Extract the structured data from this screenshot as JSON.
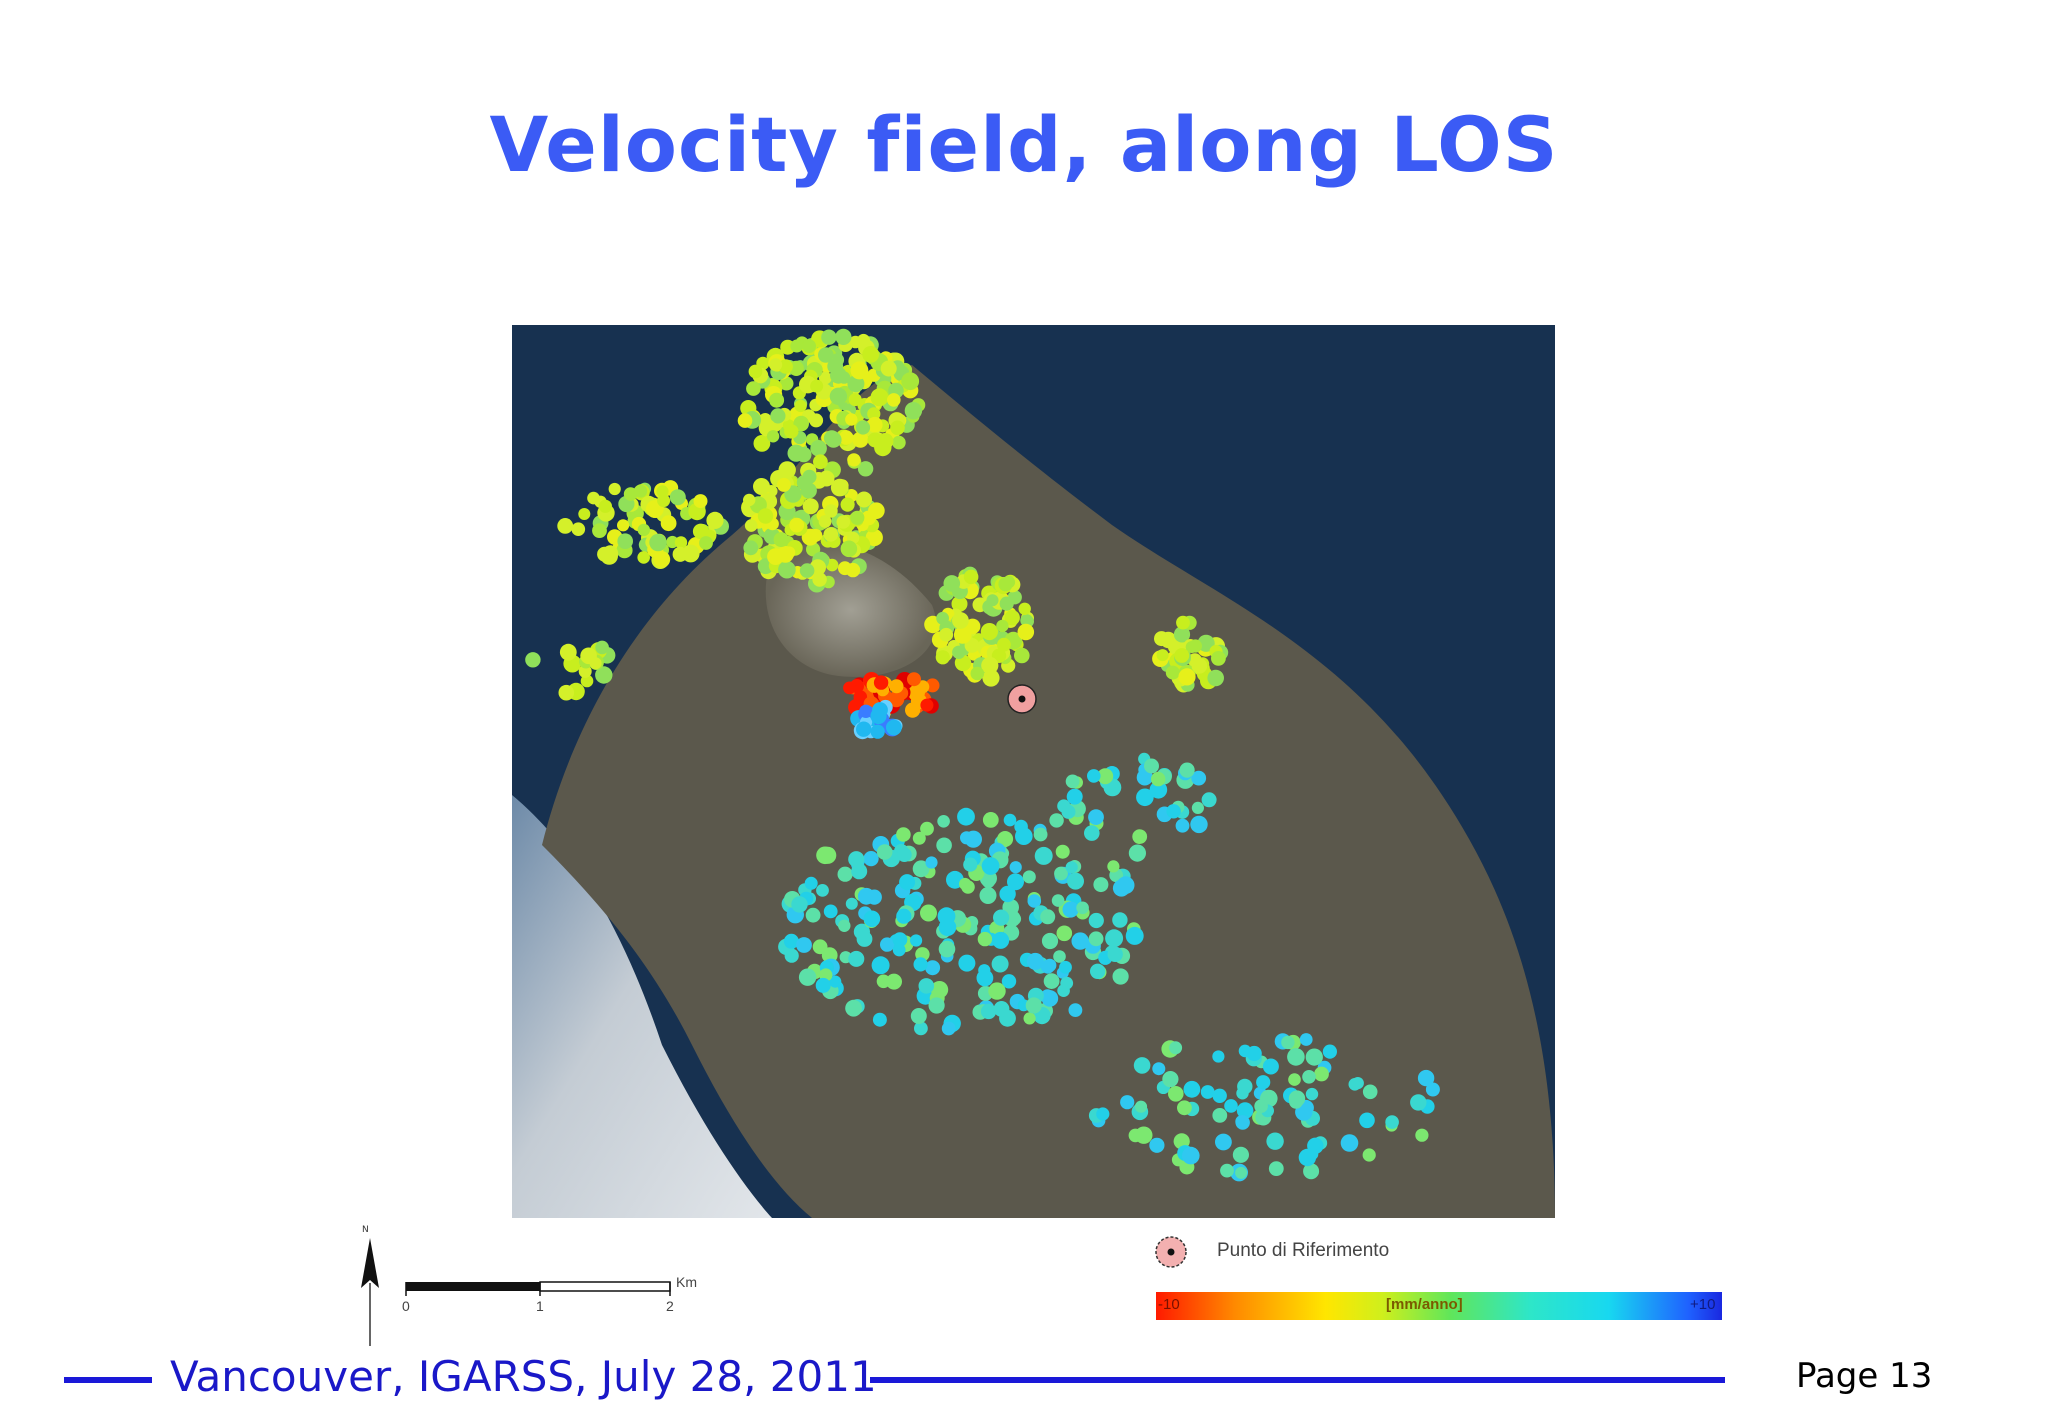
{
  "slide": {
    "title": "Velocity field, along LOS",
    "footer_text": "Vancouver, IGARSS, July 28, 2011",
    "page_label": "Page 13"
  },
  "map": {
    "north_label": "N",
    "scale_unit": "Km",
    "scale_ticks": [
      "0",
      "1",
      "2"
    ],
    "reference_label": "Punto di Riferimento",
    "colorbar": {
      "min_label": "-10",
      "max_label": "+10",
      "unit_label": "[mm/anno]",
      "colors": [
        "#ff1a00",
        "#ff8a00",
        "#ffe600",
        "#cfef1c",
        "#60e65a",
        "#2ee6c8",
        "#18d8f0",
        "#1f62ff",
        "#1a28e0"
      ]
    },
    "colors": {
      "sea": "#173150",
      "land": "#5e5a4e",
      "surf": "#c9d0d6"
    }
  }
}
